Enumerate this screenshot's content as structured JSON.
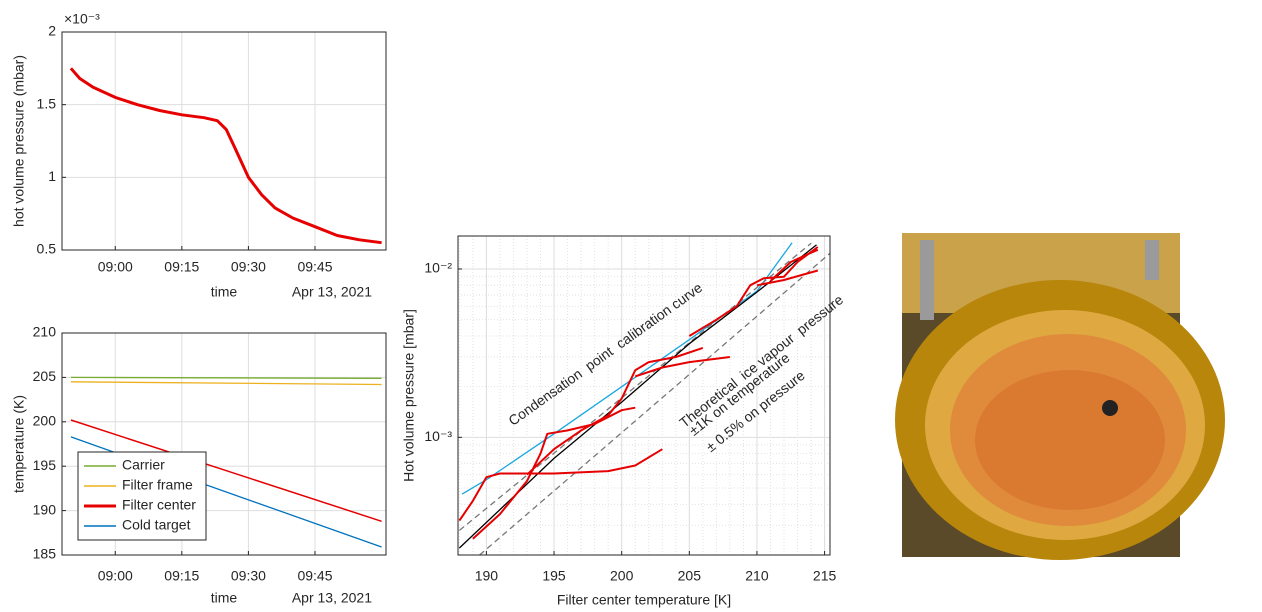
{
  "chart_data": [
    {
      "type": "line",
      "ylabel": "hot volume pressure (mbar)",
      "xlabel": "time",
      "date_label": "Apr 13, 2021",
      "y_exponent_label": "×10⁻³",
      "x": [
        "08:50",
        "08:52",
        "08:55",
        "09:00",
        "09:05",
        "09:10",
        "09:15",
        "09:20",
        "09:23",
        "09:25",
        "09:27",
        "09:30",
        "09:33",
        "09:36",
        "09:40",
        "09:45",
        "09:50",
        "09:55",
        "10:00"
      ],
      "series": [
        {
          "color": "#e60000",
          "values": [
            1.75,
            1.68,
            1.62,
            1.55,
            1.5,
            1.46,
            1.43,
            1.41,
            1.39,
            1.33,
            1.2,
            1.0,
            0.88,
            0.79,
            0.72,
            0.66,
            0.6,
            0.57,
            0.55
          ]
        }
      ],
      "xlim": [
        "08:48",
        "10:01"
      ],
      "ylim": [
        0.5,
        2
      ],
      "xticks": [
        "09:00",
        "09:15",
        "09:30",
        "09:45"
      ],
      "yticks": [
        0.5,
        1,
        1.5,
        2
      ],
      "grid": true
    },
    {
      "type": "line",
      "ylabel": "temperature (K)",
      "xlabel": "time",
      "date_label": "Apr 13, 2021",
      "x": [
        "08:50",
        "10:00"
      ],
      "series": [
        {
          "name": "Carrier",
          "color": "#77ac30",
          "values": [
            205,
            204.9
          ]
        },
        {
          "name": "Filter frame",
          "color": "#edb120",
          "values": [
            204.5,
            204.2
          ]
        },
        {
          "name": "Filter center",
          "color": "#e60000",
          "values": [
            200.2,
            188.8
          ]
        },
        {
          "name": "Cold target",
          "color": "#0072bd",
          "values": [
            198.3,
            185.9
          ]
        }
      ],
      "xlim": [
        "08:48",
        "10:01"
      ],
      "ylim": [
        185,
        210
      ],
      "xticks": [
        "09:00",
        "09:15",
        "09:30",
        "09:45"
      ],
      "yticks": [
        185,
        190,
        195,
        200,
        205,
        210
      ],
      "grid": true,
      "legend": "lower left"
    },
    {
      "type": "line",
      "ylabel": "Hot volume pressure [mbar]",
      "xlabel": "Filter center temperature [K]",
      "log_y": true,
      "grid": true,
      "minor_grid": true,
      "series": [
        {
          "color": "#1aa7e0",
          "x": [
            188.2,
            190,
            195,
            200,
            205,
            210,
            212.6
          ],
          "values": [
            0.00046,
            0.00056,
            0.00105,
            0.002,
            0.0038,
            0.0074,
            0.0143
          ]
        },
        {
          "color": "#777777",
          "dash": true,
          "x": [
            188,
            214
          ],
          "values": [
            0.00028,
            0.0142
          ]
        },
        {
          "color": "#777777",
          "dash": true,
          "x": [
            189.5,
            215.4
          ],
          "values": [
            0.0002,
            0.0124
          ]
        },
        {
          "color": "#000000",
          "x": [
            188,
            195,
            200,
            205,
            210,
            214.4
          ],
          "values": [
            0.00022,
            0.00075,
            0.00162,
            0.0036,
            0.0073,
            0.0139
          ]
        },
        {
          "color": "#e60000",
          "x": [
            188,
            189,
            190,
            191,
            195,
            199,
            201,
            203,
            null,
            189,
            191,
            193,
            194,
            194.5,
            196,
            198,
            200,
            201,
            null,
            193,
            195,
            197,
            199,
            200,
            201,
            202,
            204,
            206,
            null,
            201,
            203,
            205,
            208,
            null,
            205,
            207,
            208.5,
            209.5,
            210.5,
            212,
            213,
            214.5,
            null,
            210,
            212,
            214.5,
            null,
            211,
            212.5,
            214,
            214.5
          ],
          "values": [
            0.00032,
            0.00042,
            0.00058,
            0.00061,
            0.00061,
            0.00063,
            0.00068,
            0.00085,
            null,
            0.00025,
            0.00035,
            0.00055,
            0.0008,
            0.00105,
            0.0011,
            0.0012,
            0.00145,
            0.0015,
            null,
            0.0006,
            0.00085,
            0.0011,
            0.00135,
            0.0017,
            0.0025,
            0.0028,
            0.003,
            0.0034,
            null,
            0.0023,
            0.0026,
            0.0028,
            0.003,
            null,
            0.004,
            0.005,
            0.006,
            0.008,
            0.0088,
            0.009,
            0.011,
            0.0135,
            null,
            0.008,
            0.0086,
            0.0098,
            null,
            0.0085,
            0.011,
            0.0125,
            0.013
          ]
        }
      ],
      "annotations": [
        {
          "text": "Condensation  point  calibration curve",
          "color": "#1aa7e0"
        },
        {
          "text": "Theoretical  ice vapour  pressure",
          "color": "#000000"
        },
        {
          "text": "±1K on temperature",
          "color": "#000000"
        },
        {
          "text": "± 0.5% on pressure",
          "color": "#000000"
        }
      ],
      "xlim": [
        187.9,
        215.4
      ],
      "ylim": [
        0.0002,
        0.0157
      ],
      "xticks": [
        190,
        195,
        200,
        205,
        210,
        215
      ],
      "yticks": [
        {
          "value": 0.001,
          "label": "10⁻³"
        },
        {
          "value": 0.01,
          "label": "10⁻²"
        }
      ]
    }
  ]
}
